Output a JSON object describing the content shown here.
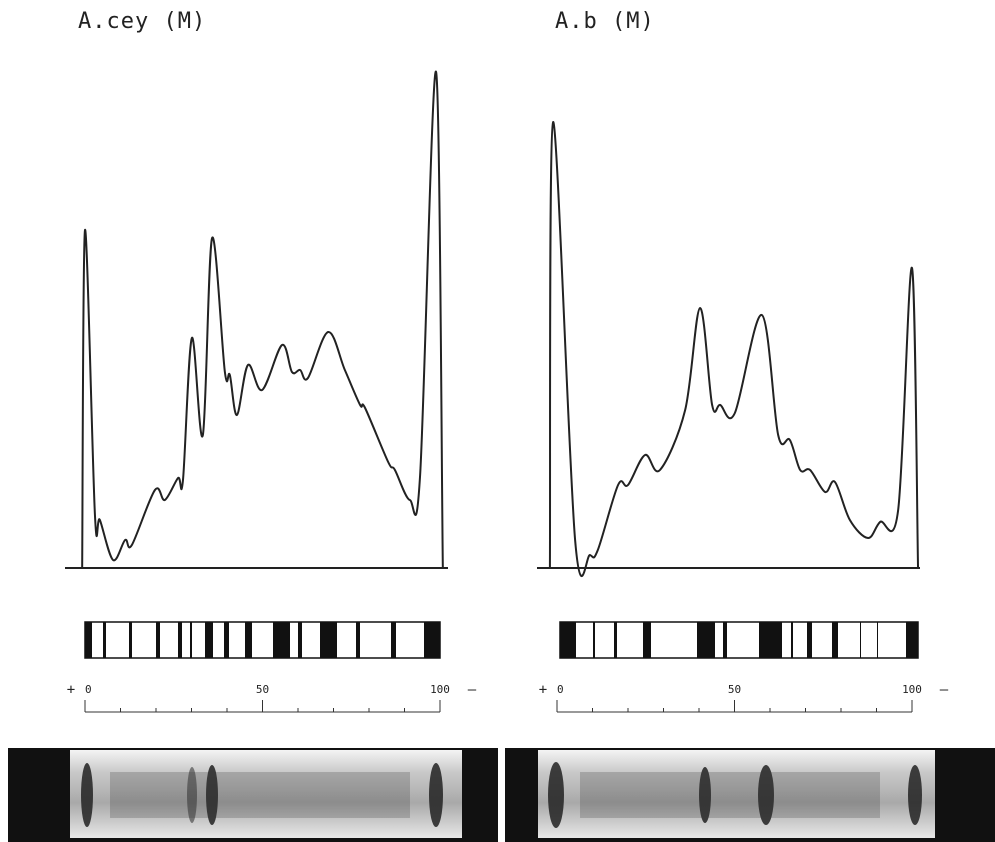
{
  "chart_data": [
    {
      "type": "line",
      "title": "A.cey (M)",
      "color": "#222222",
      "x": [
        -0.8,
        0,
        2.8,
        4.2,
        7.9,
        11.3,
        13.2,
        19.7,
        22.5,
        26.2,
        27.6,
        30.1,
        33.2,
        35.8,
        39.4,
        40.8,
        42.8,
        45.9,
        49.9,
        55.5,
        58.3,
        60.6,
        62.8,
        68.5,
        73.2,
        77.5,
        78.9,
        85.4,
        87.3,
        91.5,
        94.4,
        98.9,
        100.8
      ],
      "values": [
        0,
        67.6,
        10.6,
        9.6,
        1.6,
        5.6,
        4.6,
        15.6,
        13.6,
        18,
        17.6,
        46,
        26.6,
        66,
        39.2,
        38.6,
        30.6,
        40.6,
        35.6,
        44.6,
        39.2,
        39.6,
        38,
        47.2,
        39.6,
        32.6,
        32,
        21.2,
        19.6,
        13.6,
        18.6,
        99.2,
        0
      ],
      "xlim": [
        0,
        100
      ],
      "ylim": [
        0,
        100
      ],
      "xticks": [
        0,
        50,
        100
      ],
      "annotations": [
        "+",
        "—"
      ]
    },
    {
      "type": "line",
      "title": "A.b (M)",
      "color": "#222222",
      "x": [
        -2,
        -1.1,
        5.1,
        9.3,
        11.5,
        17.2,
        20,
        24.8,
        29,
        36.1,
        40.3,
        43.7,
        46,
        50.1,
        57.7,
        62.3,
        65.6,
        68.5,
        71.3,
        75.5,
        78.3,
        82.5,
        87.6,
        91,
        96.1,
        100,
        101.7
      ],
      "values": [
        0,
        89.2,
        5.6,
        2.6,
        3.6,
        16.6,
        16.6,
        22.6,
        19.6,
        31.6,
        52,
        32.6,
        32.6,
        31,
        50.6,
        26.6,
        25.6,
        19.6,
        19.6,
        15.2,
        17.2,
        9.6,
        6,
        9.2,
        11.6,
        60,
        0
      ],
      "xlim": [
        0,
        100
      ],
      "ylim": [
        0,
        100
      ],
      "xticks": [
        0,
        50,
        100
      ],
      "annotations": [
        "+",
        "—"
      ]
    }
  ]
}
